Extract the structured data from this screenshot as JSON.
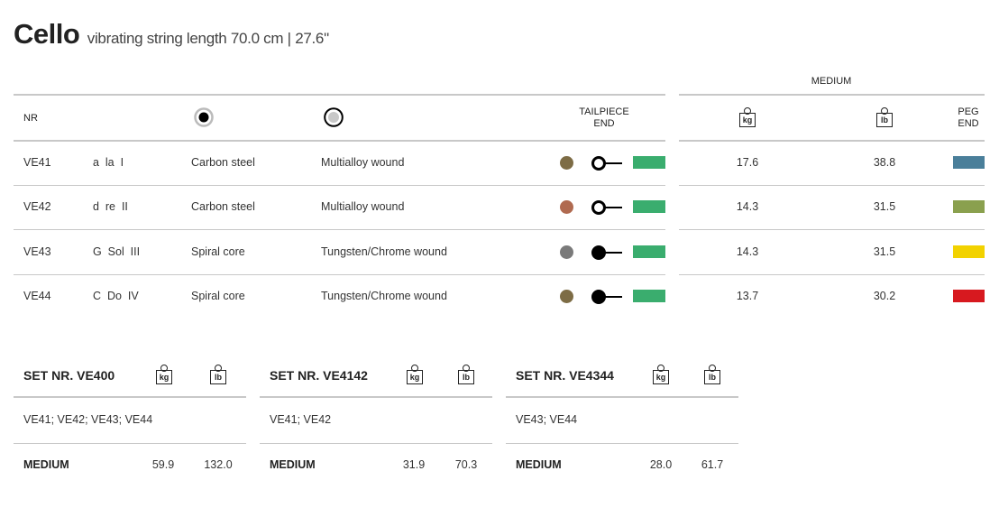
{
  "header": {
    "instrument": "Cello",
    "subtitle": "vibrating string length 70.0 cm | 27.6\""
  },
  "table": {
    "tension_group": "MEDIUM",
    "col_nr": "NR",
    "col_tailpiece_line1": "TAILPIECE",
    "col_tailpiece_line2": "END",
    "col_peg_line1": "PEG",
    "col_peg_line2": "END",
    "unit_kg": "kg",
    "unit_lb": "lb",
    "core_icon": "solid-core-icon",
    "winding_icon": "wound-icon",
    "rows": [
      {
        "nr": "VE41",
        "note": "a  la  I",
        "core": "Carbon steel",
        "winding": "Multialloy wound",
        "silk_color": "#7d6c45",
        "tail_type": "ball-end",
        "tail_color": "#3aad6e",
        "kg": "17.6",
        "lb": "38.8",
        "peg_color": "#4a7f9a"
      },
      {
        "nr": "VE42",
        "note": "d  re  II",
        "core": "Carbon steel",
        "winding": "Multialloy wound",
        "silk_color": "#b06a50",
        "tail_type": "ball-end",
        "tail_color": "#3aad6e",
        "kg": "14.3",
        "lb": "31.5",
        "peg_color": "#8aa04e"
      },
      {
        "nr": "VE43",
        "note": "G  Sol  III",
        "core": "Spiral core",
        "winding": "Tungsten/Chrome wound",
        "silk_color": "#7a7a7a",
        "tail_type": "solid-ball",
        "tail_color": "#3aad6e",
        "kg": "14.3",
        "lb": "31.5",
        "peg_color": "#f2d200"
      },
      {
        "nr": "VE44",
        "note": "C  Do  IV",
        "core": "Spiral core",
        "winding": "Tungsten/Chrome wound",
        "silk_color": "#7d6c45",
        "tail_type": "solid-ball",
        "tail_color": "#3aad6e",
        "kg": "13.7",
        "lb": "30.2",
        "peg_color": "#d7191f"
      }
    ]
  },
  "sets": [
    {
      "title": "SET NR. VE400",
      "strings": "VE41; VE42; VE43; VE44",
      "tension": "MEDIUM",
      "kg": "59.9",
      "lb": "132.0"
    },
    {
      "title": "SET NR. VE4142",
      "strings": "VE41; VE42",
      "tension": "MEDIUM",
      "kg": "31.9",
      "lb": "70.3"
    },
    {
      "title": "SET NR. VE4344",
      "strings": "VE43; VE44",
      "tension": "MEDIUM",
      "kg": "28.0",
      "lb": "61.7"
    }
  ]
}
